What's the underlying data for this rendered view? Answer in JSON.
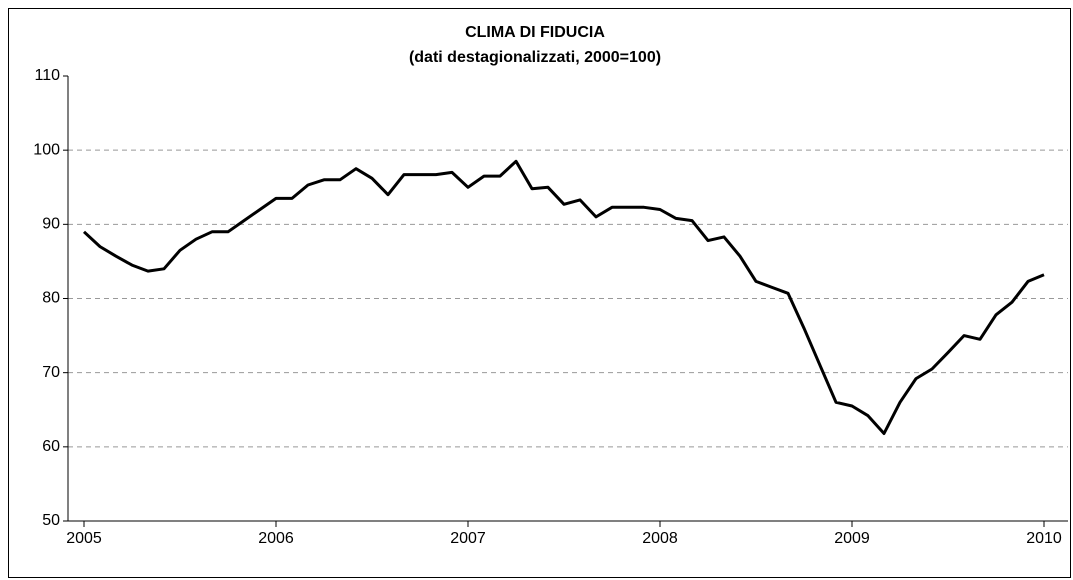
{
  "chart_data": {
    "type": "line",
    "title": "CLIMA DI FIDUCIA",
    "subtitle": "(dati destagionalizzati, 2000=100)",
    "categories": [
      "2005",
      null,
      null,
      null,
      null,
      null,
      null,
      null,
      null,
      null,
      null,
      null,
      "2006",
      null,
      null,
      null,
      null,
      null,
      null,
      null,
      null,
      null,
      null,
      null,
      "2007",
      null,
      null,
      null,
      null,
      null,
      null,
      null,
      null,
      null,
      null,
      null,
      "2008",
      null,
      null,
      null,
      null,
      null,
      null,
      null,
      null,
      null,
      null,
      null,
      "2009",
      null,
      null,
      null,
      null,
      null,
      null,
      null,
      null,
      null,
      null,
      null,
      "2010"
    ],
    "series": [
      {
        "color": "#000000",
        "values": [
          89,
          87,
          85.7,
          84.5,
          83.7,
          84,
          86.5,
          88,
          89,
          89,
          90.5,
          92,
          93.5,
          93.5,
          95.3,
          96,
          96,
          97.5,
          96.2,
          94,
          96.7,
          96.7,
          96.7,
          97,
          95,
          96.5,
          96.5,
          98.5,
          94.8,
          95,
          92.7,
          93.3,
          91,
          92.3,
          92.3,
          92.3,
          92,
          90.8,
          90.5,
          87.8,
          88.3,
          85.7,
          82.3,
          81.5,
          80.7,
          76,
          71,
          66,
          65.5,
          64.2,
          61.8,
          66,
          69.2,
          70.5,
          72.7,
          75,
          74.5,
          77.8,
          79.5,
          82.3,
          83.2
        ]
      }
    ],
    "ylim": [
      50,
      110
    ],
    "yticks": [
      50,
      60,
      70,
      80,
      90,
      100,
      110
    ],
    "grid": true
  }
}
